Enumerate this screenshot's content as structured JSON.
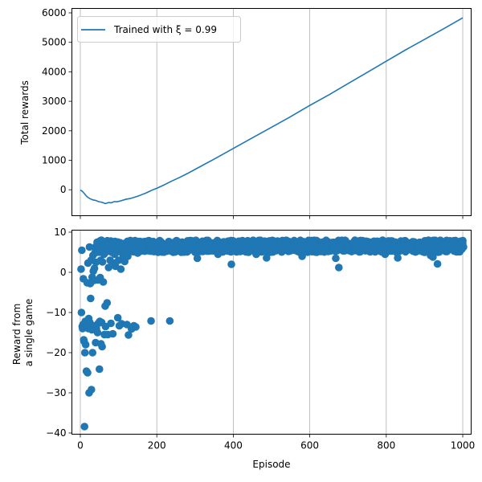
{
  "chart_data": [
    {
      "type": "line",
      "title": "",
      "xlabel": "",
      "ylabel": "Total rewards",
      "xlim": [
        -22,
        1022
      ],
      "ylim": [
        -880,
        6150
      ],
      "xticks": [
        0,
        200,
        400,
        600,
        800,
        1000
      ],
      "yticks": [
        0,
        1000,
        2000,
        3000,
        4000,
        5000,
        6000
      ],
      "yticklabels": [
        "0",
        "1000",
        "2000",
        "3000",
        "4000",
        "5000",
        "6000"
      ],
      "grid": "x",
      "legend_position": "top-left",
      "series": [
        {
          "name": "Trained with ξ = 0.99",
          "color": "#1f77b4",
          "x": [
            0,
            5,
            10,
            15,
            20,
            25,
            30,
            35,
            40,
            45,
            50,
            55,
            60,
            65,
            70,
            75,
            80,
            85,
            90,
            95,
            100,
            105,
            110,
            115,
            120,
            125,
            130,
            135,
            140,
            145,
            150,
            160,
            170,
            180,
            190,
            200,
            220,
            240,
            260,
            280,
            300,
            350,
            400,
            450,
            500,
            550,
            600,
            650,
            700,
            750,
            800,
            850,
            900,
            950,
            1000
          ],
          "y": [
            -10,
            -50,
            -120,
            -200,
            -260,
            -300,
            -330,
            -350,
            -360,
            -390,
            -410,
            -420,
            -440,
            -470,
            -450,
            -430,
            -445,
            -420,
            -400,
            -410,
            -395,
            -380,
            -360,
            -340,
            -320,
            -310,
            -300,
            -280,
            -260,
            -240,
            -220,
            -170,
            -120,
            -60,
            0,
            50,
            170,
            300,
            420,
            550,
            690,
            1040,
            1400,
            1760,
            2120,
            2480,
            2860,
            3220,
            3600,
            3980,
            4360,
            4740,
            5100,
            5460,
            5830
          ]
        }
      ]
    },
    {
      "type": "scatter",
      "title": "",
      "xlabel": "Episode",
      "ylabel": "Reward from a single game",
      "xlim": [
        -22,
        1022
      ],
      "ylim": [
        -40.3,
        10.5
      ],
      "xticks": [
        0,
        200,
        400,
        600,
        800,
        1000
      ],
      "xticklabels": [
        "0",
        "200",
        "400",
        "600",
        "800",
        "1000"
      ],
      "yticks": [
        -40,
        -30,
        -20,
        -10,
        0,
        10
      ],
      "yticklabels": [
        "−40",
        "−30",
        "−20",
        "−10",
        "0",
        "10"
      ],
      "grid": "x",
      "series": [
        {
          "name": "",
          "color": "#1f77b4",
          "points": [
            [
              2,
              0.8
            ],
            [
              3,
              -10
            ],
            [
              4,
              5.5
            ],
            [
              5,
              -13.5
            ],
            [
              6,
              -14
            ],
            [
              7,
              -13
            ],
            [
              8,
              -1.6
            ],
            [
              9,
              -16.8
            ],
            [
              10,
              -17.2
            ],
            [
              11,
              -38.4
            ],
            [
              12,
              -20
            ],
            [
              13,
              -12.2
            ],
            [
              14,
              -18
            ],
            [
              16,
              -24.6
            ],
            [
              17,
              -13.2
            ],
            [
              18,
              -2.6
            ],
            [
              19,
              -25
            ],
            [
              20,
              2.3
            ],
            [
              21,
              -14
            ],
            [
              22,
              -11.5
            ],
            [
              23,
              -30
            ],
            [
              24,
              6.3
            ],
            [
              25,
              -12.5
            ],
            [
              26,
              -2.8
            ],
            [
              27,
              -6.5
            ],
            [
              28,
              3
            ],
            [
              29,
              -29.2
            ],
            [
              30,
              -14.3
            ],
            [
              31,
              -1.2
            ],
            [
              32,
              -20
            ],
            [
              33,
              4.2
            ],
            [
              34,
              0.3
            ],
            [
              35,
              -13.3
            ],
            [
              36,
              -2
            ],
            [
              37,
              1
            ],
            [
              38,
              4.8
            ],
            [
              40,
              -17.5
            ],
            [
              41,
              2.5
            ],
            [
              42,
              -14
            ],
            [
              44,
              7.5
            ],
            [
              45,
              -15
            ],
            [
              46,
              -1.9
            ],
            [
              47,
              -12.7
            ],
            [
              48,
              5
            ],
            [
              50,
              -24.1
            ],
            [
              51,
              -12.2
            ],
            [
              52,
              -1.3
            ],
            [
              53,
              3
            ],
            [
              54,
              -17.8
            ],
            [
              55,
              8
            ],
            [
              56,
              -12.5
            ],
            [
              57,
              -18.5
            ],
            [
              58,
              2.6
            ],
            [
              60,
              -2.4
            ],
            [
              62,
              4.5
            ],
            [
              63,
              -15.5
            ],
            [
              65,
              -8.4
            ],
            [
              66,
              -13.5
            ],
            [
              68,
              6
            ],
            [
              70,
              -7.6
            ],
            [
              72,
              -15.5
            ],
            [
              74,
              1.2
            ],
            [
              75,
              6.8
            ],
            [
              78,
              3
            ],
            [
              80,
              -12.7
            ],
            [
              82,
              5
            ],
            [
              85,
              -15.3
            ],
            [
              88,
              2.3
            ],
            [
              90,
              4.5
            ],
            [
              92,
              1.5
            ],
            [
              95,
              6.5
            ],
            [
              98,
              -11.3
            ],
            [
              100,
              3
            ],
            [
              102,
              -13.3
            ],
            [
              104,
              6
            ],
            [
              106,
              0.8
            ],
            [
              108,
              -12.8
            ],
            [
              112,
              4.2
            ],
            [
              116,
              2.7
            ],
            [
              120,
              6.5
            ],
            [
              122,
              -13
            ],
            [
              124,
              4
            ],
            [
              126,
              -15.6
            ],
            [
              130,
              5.4
            ],
            [
              134,
              -14.1
            ],
            [
              138,
              6
            ],
            [
              140,
              -13.3
            ],
            [
              145,
              -13.6
            ],
            [
              150,
              4.8
            ],
            [
              160,
              6
            ],
            [
              185,
              -12.1
            ],
            [
              200,
              5.8
            ],
            [
              210,
              7
            ],
            [
              234,
              -12.1
            ],
            [
              240,
              5.5
            ],
            [
              260,
              6.8
            ],
            [
              300,
              5
            ],
            [
              306,
              3.5
            ],
            [
              320,
              6.6
            ],
            [
              340,
              5.8
            ],
            [
              360,
              4.5
            ],
            [
              380,
              7
            ],
            [
              395,
              2
            ],
            [
              420,
              6.5
            ],
            [
              440,
              5
            ],
            [
              460,
              4.5
            ],
            [
              487,
              3.6
            ],
            [
              520,
              6
            ],
            [
              560,
              5.5
            ],
            [
              580,
              4
            ],
            [
              600,
              6.5
            ],
            [
              640,
              5.2
            ],
            [
              660,
              6
            ],
            [
              668,
              3.5
            ],
            [
              676,
              1.2
            ],
            [
              700,
              6.3
            ],
            [
              760,
              5.5
            ],
            [
              797,
              4.5
            ],
            [
              830,
              3.6
            ],
            [
              860,
              6.5
            ],
            [
              900,
              5.3
            ],
            [
              916,
              4.2
            ],
            [
              922,
              3.8
            ],
            [
              934,
              2.1
            ],
            [
              960,
              6.8
            ],
            [
              1000,
              7.2
            ]
          ],
          "dense_band": {
            "x_range": [
              40,
              1000
            ],
            "y_range": [
              5,
              8
            ]
          }
        }
      ]
    }
  ]
}
